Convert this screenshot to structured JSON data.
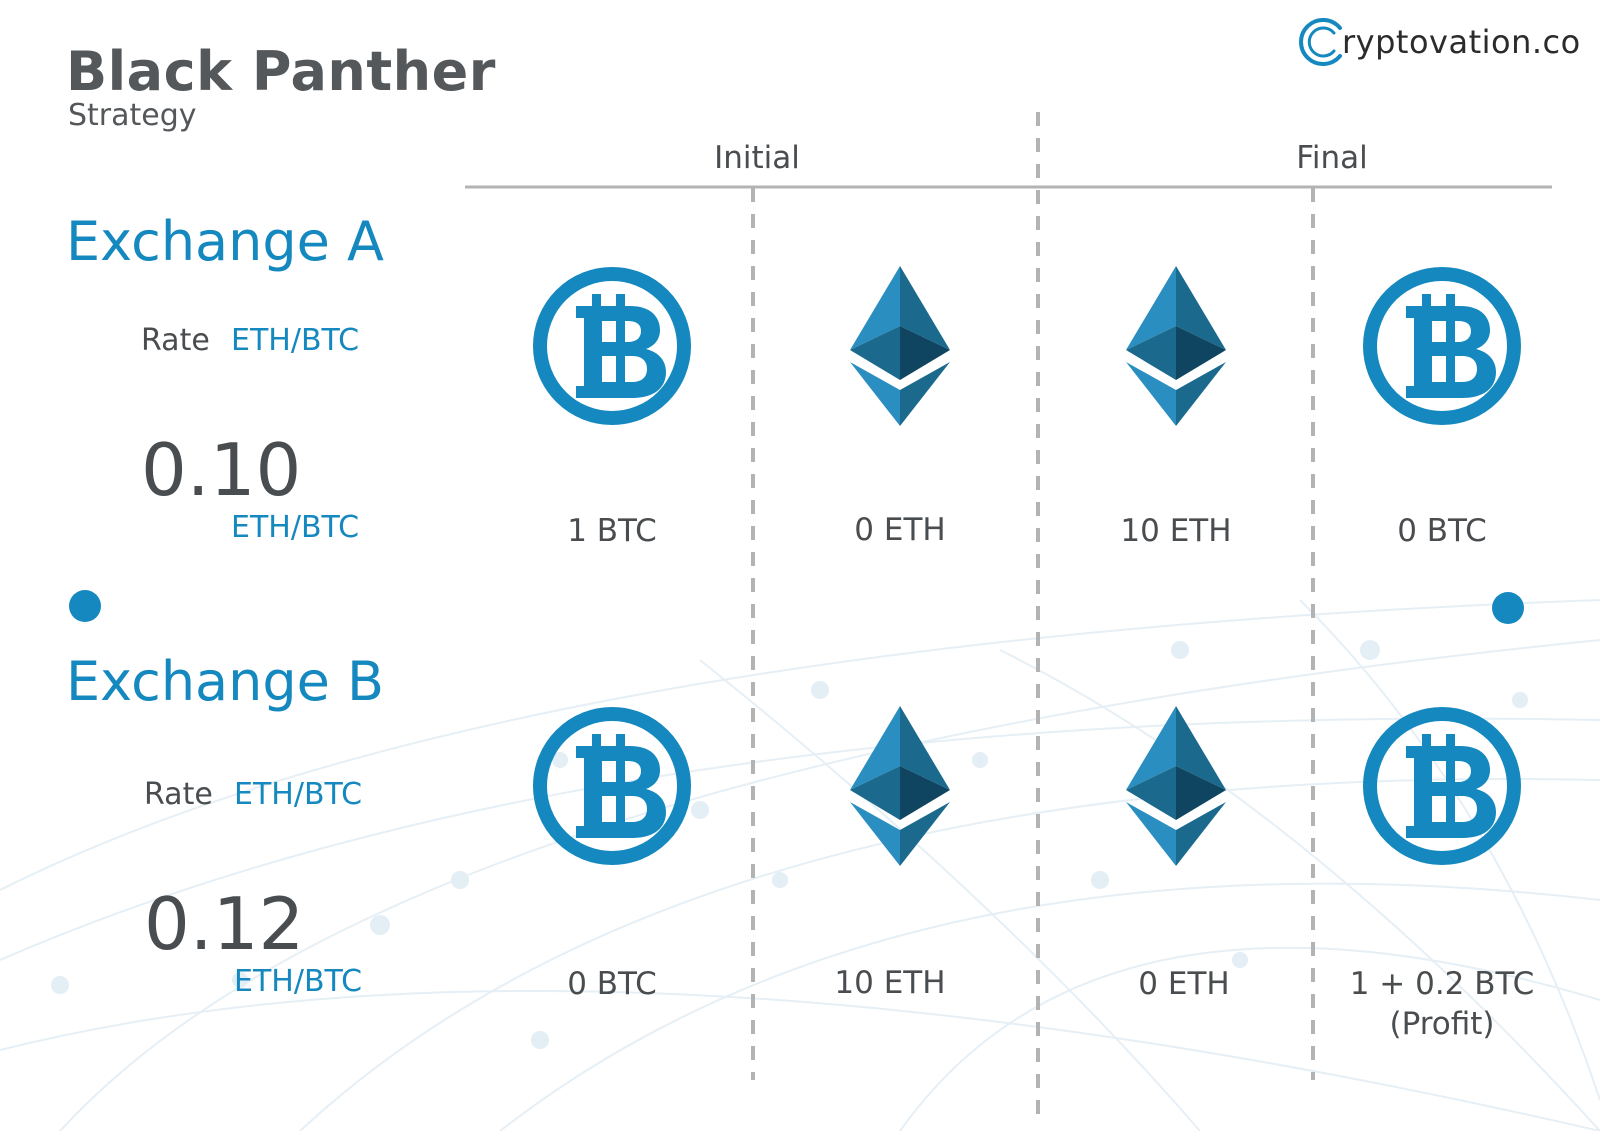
{
  "header": {
    "title": "Black Panther",
    "subtitle": "Strategy",
    "brand_letter": "C",
    "brand_rest": "ryptovation.co"
  },
  "columns": {
    "initial": "Initial",
    "final": "Final"
  },
  "exchange_a": {
    "name": "Exchange A",
    "rate_label": "Rate",
    "rate_unit": "ETH/BTC",
    "rate_value": "0.10",
    "rate_value_unit": "ETH/BTC",
    "steps": [
      {
        "icon": "bitcoin-icon",
        "amount": "1 BTC"
      },
      {
        "icon": "ethereum-icon",
        "amount": "0 ETH"
      },
      {
        "icon": "ethereum-icon",
        "amount": "10 ETH"
      },
      {
        "icon": "bitcoin-icon",
        "amount": "0 BTC"
      }
    ]
  },
  "exchange_b": {
    "name": "Exchange B",
    "rate_label": "Rate",
    "rate_unit": "ETH/BTC",
    "rate_value": "0.12",
    "rate_value_unit": "ETH/BTC",
    "steps": [
      {
        "icon": "bitcoin-icon",
        "amount": "0 BTC"
      },
      {
        "icon": "ethereum-icon",
        "amount": "10 ETH"
      },
      {
        "icon": "ethereum-icon",
        "amount": "0 ETH"
      },
      {
        "icon": "bitcoin-icon",
        "amount": "1 + 0.2 BTC",
        "amount_note": "(Profit)"
      }
    ]
  },
  "colors": {
    "accent": "#1589bf",
    "text": "#4a4d50",
    "title": "#55585b",
    "divider": "#b3b3b3",
    "eth_light": "#2a8fc0",
    "eth_mid": "#1b6a8e",
    "eth_dark": "#0f4560"
  }
}
